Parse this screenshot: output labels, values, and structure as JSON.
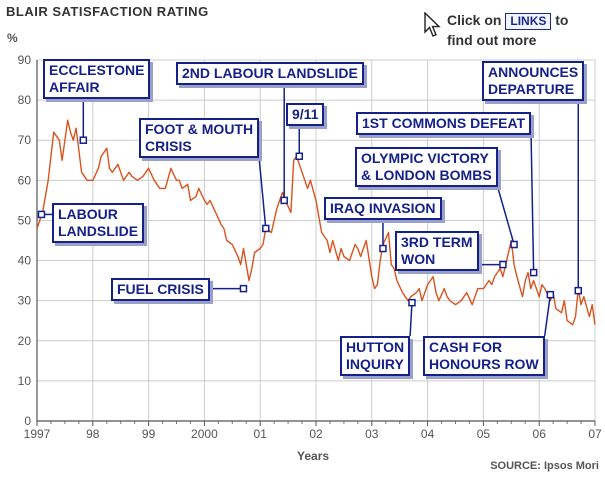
{
  "header": {
    "title": "BLAIR SATISFACTION RATING",
    "y_unit": "%",
    "hint_prefix": "Click on",
    "hint_link": "LINKS",
    "hint_suffix": "to",
    "hint_line2": "find out more"
  },
  "footer": {
    "source": "SOURCE: Ipsos Mori"
  },
  "colors": {
    "line": "#d9531e",
    "annotation": "#15218a",
    "grid": "#cccccc"
  },
  "chart_data": {
    "type": "line",
    "title": "BLAIR SATISFACTION RATING",
    "xlabel": "Years",
    "ylabel": "%",
    "xlim": [
      1997,
      2007
    ],
    "ylim": [
      0,
      90
    ],
    "yticks": [
      0,
      10,
      20,
      30,
      40,
      50,
      60,
      70,
      80,
      90
    ],
    "xtick_values": [
      1997,
      1998,
      1999,
      2000,
      2001,
      2002,
      2003,
      2004,
      2005,
      2006,
      2007
    ],
    "xtick_labels": [
      "1997",
      "98",
      "99",
      "2000",
      "01",
      "02",
      "03",
      "04",
      "05",
      "06",
      "07"
    ],
    "grid": true,
    "series": [
      {
        "name": "Satisfaction rating",
        "x": [
          1997.0,
          1997.1,
          1997.2,
          1997.3,
          1997.4,
          1997.45,
          1997.55,
          1997.6,
          1997.65,
          1997.7,
          1997.8,
          1997.9,
          1997.95,
          1998.0,
          1998.1,
          1998.15,
          1998.25,
          1998.3,
          1998.35,
          1998.45,
          1998.5,
          1998.55,
          1998.65,
          1998.7,
          1998.8,
          1998.9,
          1999.0,
          1999.1,
          1999.2,
          1999.3,
          1999.4,
          1999.5,
          1999.55,
          1999.6,
          1999.7,
          1999.75,
          1999.85,
          1999.9,
          2000.0,
          2000.05,
          2000.1,
          2000.2,
          2000.3,
          2000.35,
          2000.4,
          2000.5,
          2000.6,
          2000.65,
          2000.7,
          2000.8,
          2000.85,
          2000.9,
          2001.0,
          2001.05,
          2001.1,
          2001.2,
          2001.3,
          2001.4,
          2001.45,
          2001.55,
          2001.6,
          2001.65,
          2001.7,
          2001.8,
          2001.85,
          2001.9,
          2002.0,
          2002.05,
          2002.1,
          2002.2,
          2002.25,
          2002.3,
          2002.4,
          2002.45,
          2002.5,
          2002.6,
          2002.7,
          2002.75,
          2002.8,
          2002.9,
          2003.0,
          2003.05,
          2003.1,
          2003.15,
          2003.2,
          2003.3,
          2003.35,
          2003.4,
          2003.45,
          2003.55,
          2003.6,
          2003.65,
          2003.7,
          2003.8,
          2003.85,
          2003.9,
          2004.0,
          2004.1,
          2004.15,
          2004.2,
          2004.3,
          2004.35,
          2004.4,
          2004.5,
          2004.6,
          2004.7,
          2004.8,
          2004.85,
          2004.9,
          2005.0,
          2005.1,
          2005.15,
          2005.2,
          2005.3,
          2005.35,
          2005.4,
          2005.45,
          2005.5,
          2005.55,
          2005.6,
          2005.7,
          2005.75,
          2005.8,
          2005.85,
          2005.9,
          2006.0,
          2006.05,
          2006.1,
          2006.2,
          2006.25,
          2006.3,
          2006.4,
          2006.45,
          2006.5,
          2006.6,
          2006.65,
          2006.7,
          2006.75,
          2006.8,
          2006.9,
          2006.95,
          2007.0
        ],
        "y": [
          48,
          52,
          60,
          72,
          70,
          65,
          75,
          72,
          70,
          73,
          62,
          60,
          60,
          60,
          63,
          66,
          68,
          63,
          62,
          64,
          62,
          60,
          62,
          61,
          60,
          61,
          63,
          60,
          58,
          58,
          63,
          60,
          60,
          58,
          59,
          55,
          56,
          58,
          55,
          54,
          55,
          52,
          49,
          48,
          45,
          44,
          41,
          39,
          43,
          35,
          38,
          42,
          43,
          44,
          48,
          47,
          53,
          57,
          55,
          52,
          65,
          66,
          64,
          60,
          58,
          60,
          55,
          51,
          47,
          45,
          42,
          45,
          40,
          43,
          41,
          40,
          44,
          43,
          41,
          45,
          36,
          33,
          34,
          40,
          44,
          47,
          39,
          38,
          35,
          32,
          31,
          30,
          31,
          32,
          33,
          30,
          34,
          36,
          32,
          30,
          33,
          31,
          30,
          29,
          30,
          32,
          29,
          31,
          33,
          33,
          35,
          34,
          36,
          38,
          36,
          39,
          42,
          45,
          39,
          36,
          31,
          35,
          37,
          33,
          35,
          31,
          34,
          33,
          30,
          32,
          28,
          27,
          30,
          25,
          24,
          26,
          33,
          29,
          31,
          26,
          29,
          24
        ]
      }
    ],
    "annotations": [
      {
        "label_lines": [
          "ECCLESTONE",
          "AFFAIR"
        ],
        "x": 1997.83,
        "y": 70
      },
      {
        "label_lines": [
          "2ND LABOUR LANDSLIDE"
        ],
        "x": 2001.43,
        "y": 55
      },
      {
        "label_lines": [
          "9/11"
        ],
        "x": 2001.7,
        "y": 66
      },
      {
        "label_lines": [
          "FOOT & MOUTH",
          "CRISIS"
        ],
        "x": 2001.1,
        "y": 48
      },
      {
        "label_lines": [
          "LABOUR",
          "LANDSLIDE"
        ],
        "x": 1997.08,
        "y": 51.5
      },
      {
        "label_lines": [
          "FUEL CRISIS"
        ],
        "x": 2000.7,
        "y": 33
      },
      {
        "label_lines": [
          "IRAQ INVASION"
        ],
        "x": 2003.2,
        "y": 43
      },
      {
        "label_lines": [
          "HUTTON",
          "INQUIRY"
        ],
        "x": 2003.72,
        "y": 29.5
      },
      {
        "label_lines": [
          "1ST COMMONS DEFEAT"
        ],
        "x": 2005.9,
        "y": 37
      },
      {
        "label_lines": [
          "OLYMPIC VICTORY",
          "& LONDON BOMBS"
        ],
        "x": 2005.55,
        "y": 44
      },
      {
        "label_lines": [
          "3RD TERM",
          "WON"
        ],
        "x": 2005.35,
        "y": 39
      },
      {
        "label_lines": [
          "CASH FOR",
          "HONOURS ROW"
        ],
        "x": 2006.2,
        "y": 31.5
      },
      {
        "label_lines": [
          "ANNOUNCES",
          "DEPARTURE"
        ],
        "x": 2006.7,
        "y": 32.5
      }
    ]
  }
}
